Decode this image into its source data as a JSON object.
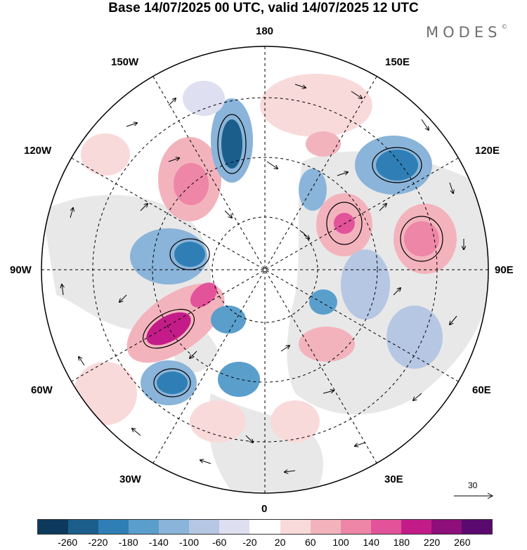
{
  "header": {
    "title": "Base 14/07/2025 00 UTC, valid 14/07/2025 12 UTC"
  },
  "brand": {
    "name": "MODES",
    "mark": "©"
  },
  "map": {
    "projection": "north-polar-stereographic",
    "longitude_labels": {
      "top": "180",
      "bottom": "0",
      "left": "90W",
      "right": "90E",
      "upper_left_1": "150W",
      "upper_left_2": "120W",
      "lower_left_1": "60W",
      "lower_left_2": "30W",
      "upper_right_1": "150E",
      "upper_right_2": "120E",
      "lower_right_1": "60E",
      "lower_right_2": "30E"
    },
    "reference_vector": {
      "value": "30"
    }
  },
  "colorbar": {
    "colors": [
      "#0d3a5c",
      "#1b5e8c",
      "#2f7fb6",
      "#5a9fcc",
      "#8ab4d9",
      "#b6c7e4",
      "#dedff0",
      "#ffffff",
      "#f9dada",
      "#f3b3bd",
      "#ee86a8",
      "#e2539a",
      "#c31c88",
      "#8e0e7a",
      "#5a0a6e"
    ],
    "ticks": [
      "-260",
      "-220",
      "-180",
      "-140",
      "-100",
      "-60",
      "-20",
      "20",
      "60",
      "100",
      "140",
      "180",
      "220",
      "260"
    ]
  }
}
